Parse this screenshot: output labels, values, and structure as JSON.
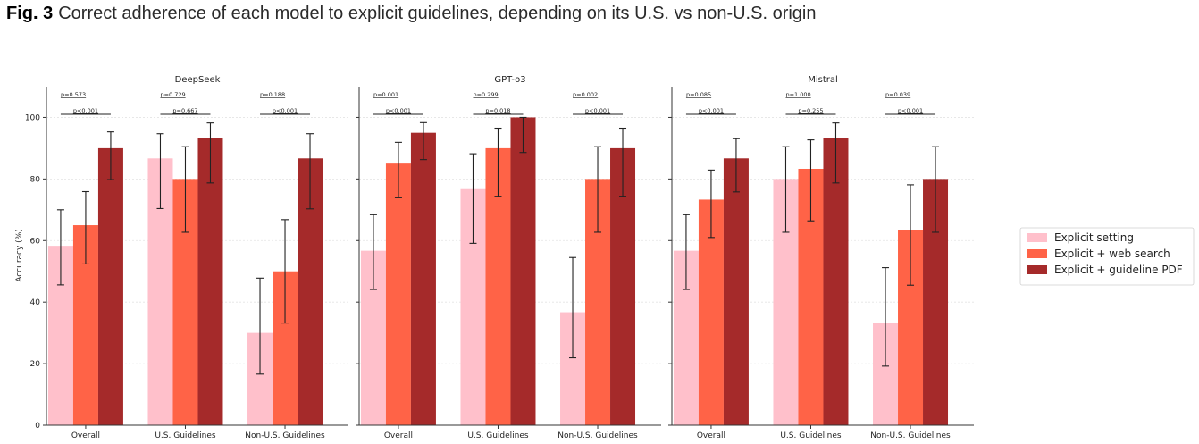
{
  "caption": {
    "label": "Fig. 3",
    "text": "Correct adherence of each model to explicit guidelines, depending on its U.S. vs non-U.S. origin"
  },
  "chart_data": {
    "type": "bar",
    "ylabel": "Accuracy (%)",
    "ylim": [
      0,
      110
    ],
    "yticks": [
      "0",
      "20",
      "40",
      "60",
      "80",
      "100"
    ],
    "categories": [
      "Overall",
      "U.S. Guidelines",
      "Non-U.S. Guidelines"
    ],
    "legend": {
      "placement": "right",
      "entries": [
        "Explicit setting",
        "Explicit + web search",
        "Explicit + guideline PDF"
      ]
    },
    "colors": [
      "#ffc0cb",
      "#ff6347",
      "#a52a2a"
    ],
    "grid": "horizontal",
    "panels": [
      {
        "title": "DeepSeek",
        "series": [
          {
            "name": "Explicit setting",
            "values": [
              58.3,
              86.7,
              30.0
            ],
            "err_low": [
              45.6,
              70.4,
              16.6
            ],
            "err_high": [
              70.0,
              94.7,
              47.8
            ]
          },
          {
            "name": "Explicit + web search",
            "values": [
              65.0,
              80.0,
              50.0
            ],
            "err_low": [
              52.4,
              62.7,
              33.2
            ],
            "err_high": [
              75.9,
              90.5,
              66.8
            ]
          },
          {
            "name": "Explicit + guideline PDF",
            "values": [
              90.0,
              93.3,
              86.7
            ],
            "err_low": [
              79.8,
              78.7,
              70.3
            ],
            "err_high": [
              95.3,
              98.2,
              94.7
            ]
          }
        ],
        "pvalues": [
          {
            "top": "p=0.573",
            "bottom": "p<0.001"
          },
          {
            "top": "p=0.729",
            "bottom": "p=0.667"
          },
          {
            "top": "p=0.188",
            "bottom": "p<0.001"
          }
        ]
      },
      {
        "title": "GPT-o3",
        "series": [
          {
            "name": "Explicit setting",
            "values": [
              56.7,
              76.7,
              36.7
            ],
            "err_low": [
              44.1,
              59.1,
              21.9
            ],
            "err_high": [
              68.4,
              88.2,
              54.5
            ]
          },
          {
            "name": "Explicit + web search",
            "values": [
              85.0,
              90.0,
              80.0
            ],
            "err_low": [
              73.9,
              74.4,
              62.7
            ],
            "err_high": [
              91.9,
              96.5,
              90.5
            ]
          },
          {
            "name": "Explicit + guideline PDF",
            "values": [
              95.0,
              100.0,
              90.0
            ],
            "err_low": [
              86.3,
              88.6,
              74.4
            ],
            "err_high": [
              98.3,
              100.0,
              96.5
            ]
          }
        ],
        "pvalues": [
          {
            "top": "p=0.001",
            "bottom": "p<0.001"
          },
          {
            "top": "p=0.299",
            "bottom": "p=0.018"
          },
          {
            "top": "p=0.002",
            "bottom": "p<0.001"
          }
        ]
      },
      {
        "title": "Mistral",
        "series": [
          {
            "name": "Explicit setting",
            "values": [
              56.7,
              80.0,
              33.3
            ],
            "err_low": [
              44.1,
              62.7,
              19.2
            ],
            "err_high": [
              68.4,
              90.5,
              51.2
            ]
          },
          {
            "name": "Explicit + web search",
            "values": [
              73.3,
              83.3,
              63.3
            ],
            "err_low": [
              61.0,
              66.4,
              45.5
            ],
            "err_high": [
              82.9,
              92.7,
              78.1
            ]
          },
          {
            "name": "Explicit + guideline PDF",
            "values": [
              86.7,
              93.3,
              80.0
            ],
            "err_low": [
              75.8,
              78.7,
              62.7
            ],
            "err_high": [
              93.1,
              98.2,
              90.5
            ]
          }
        ],
        "pvalues": [
          {
            "top": "p=0.085",
            "bottom": "p<0.001"
          },
          {
            "top": "p=1.000",
            "bottom": "p=0.255"
          },
          {
            "top": "p=0.039",
            "bottom": "p<0.001"
          }
        ]
      }
    ]
  }
}
